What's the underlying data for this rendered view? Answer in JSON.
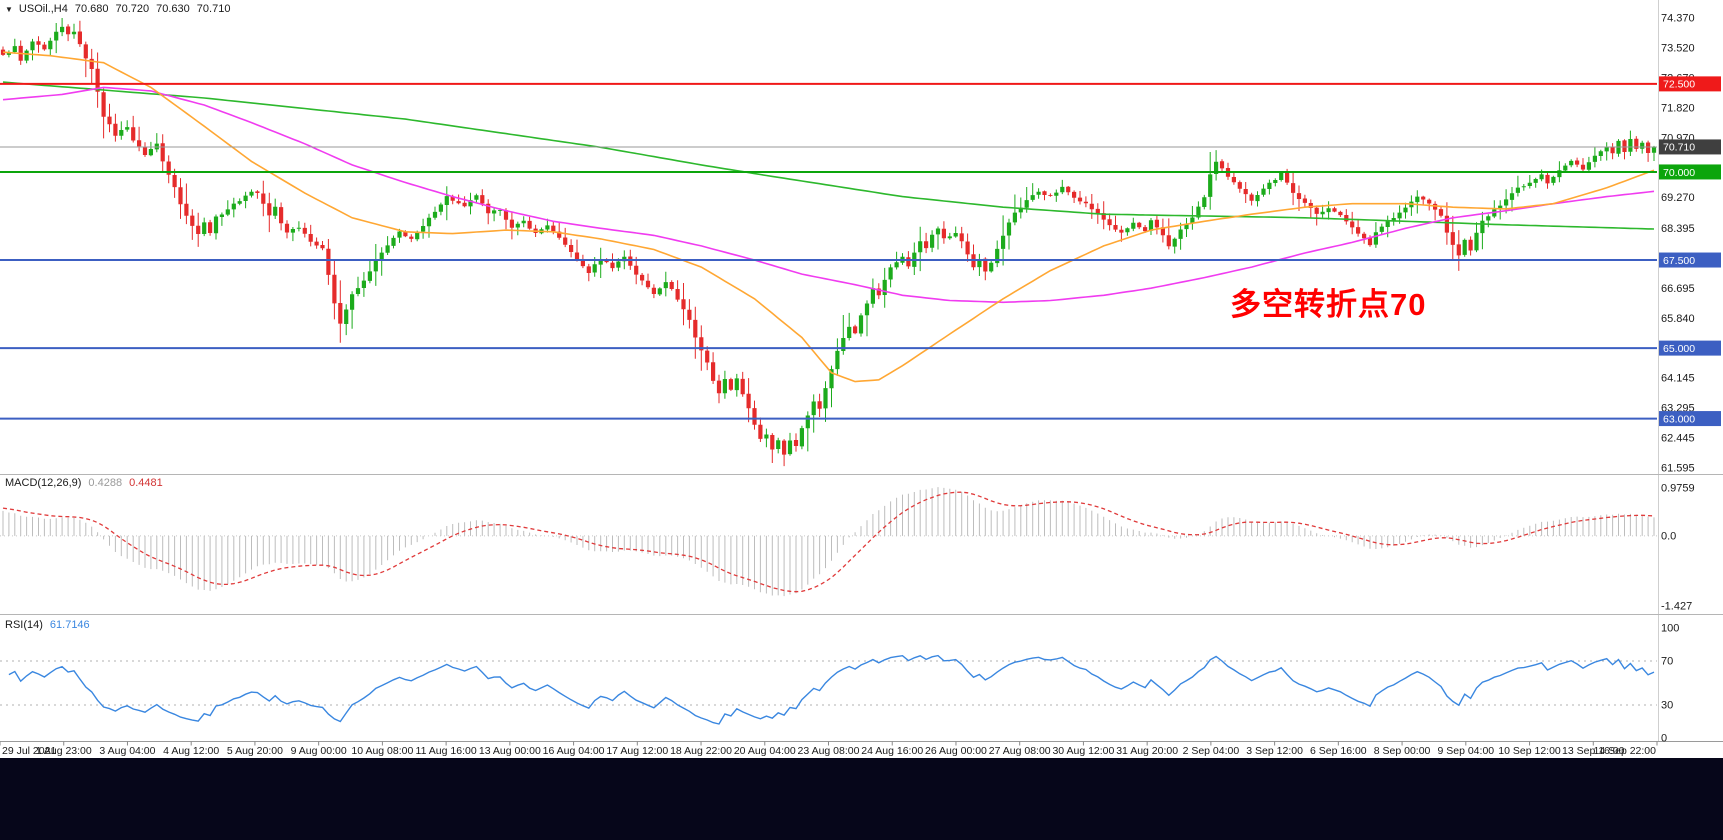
{
  "header": {
    "symbol": "USOil.,H4",
    "open": "70.680",
    "high": "70.720",
    "low": "70.630",
    "close": "70.710"
  },
  "annotation": {
    "text": "多空转折点70",
    "color": "#ff0000"
  },
  "chart_data": {
    "type": "candlestick",
    "symbol": "USOil",
    "timeframe": "H4",
    "bars": 280,
    "colors": {
      "bull": "#1cab1c",
      "bear": "#e52b2b",
      "ma_slow": "#2db82d",
      "ma_mid": "#f03cf0",
      "ma_fast": "#ffa733",
      "background": "#ffffff"
    },
    "x_labels": [
      "29 Jul 2021",
      "1 Aug 23:00",
      "3 Aug 04:00",
      "4 Aug 12:00",
      "5 Aug 20:00",
      "9 Aug 00:00",
      "10 Aug 08:00",
      "11 Aug 16:00",
      "13 Aug 00:00",
      "16 Aug 04:00",
      "17 Aug 12:00",
      "18 Aug 22:00",
      "20 Aug 04:00",
      "23 Aug 08:00",
      "24 Aug 16:00",
      "26 Aug 00:00",
      "27 Aug 08:00",
      "30 Aug 12:00",
      "31 Aug 20:00",
      "2 Sep 04:00",
      "3 Sep 12:00",
      "6 Sep 16:00",
      "8 Sep 00:00",
      "9 Sep 04:00",
      "10 Sep 12:00",
      "13 Sep 16:00",
      "14 Sep 22:00"
    ],
    "price_axis_ticks": [
      "74.370",
      "73.520",
      "72.670",
      "71.820",
      "70.970",
      "69.270",
      "68.395",
      "66.695",
      "65.840",
      "64.145",
      "63.295",
      "62.445",
      "61.595"
    ],
    "hlines": [
      {
        "value": 70.71,
        "label": "70.710",
        "line_color": "#999999",
        "tag_bg": "#3f3f3f",
        "width": 1
      },
      {
        "value": 72.5,
        "label": "72.500",
        "line_color": "#f01818",
        "tag_bg": "#ef1a1a",
        "width": 2
      },
      {
        "value": 70.0,
        "label": "70.000",
        "line_color": "#0ca50c",
        "tag_bg": "#0ca50c",
        "width": 2
      },
      {
        "value": 67.5,
        "label": "67.500",
        "line_color": "#3c5fc2",
        "tag_bg": "#3c5fc2",
        "width": 2
      },
      {
        "value": 65.0,
        "label": "65.000",
        "line_color": "#3c5fc2",
        "tag_bg": "#3c5fc2",
        "width": 2
      },
      {
        "value": 63.0,
        "label": "63.000",
        "line_color": "#3c5fc2",
        "tag_bg": "#3c5fc2",
        "width": 2
      }
    ],
    "close_waypoints": [
      [
        0,
        73.3
      ],
      [
        2,
        73.55
      ],
      [
        3,
        73.15
      ],
      [
        5,
        73.7
      ],
      [
        7,
        73.45
      ],
      [
        9,
        73.95
      ],
      [
        10,
        74.1
      ],
      [
        11,
        73.9
      ],
      [
        12,
        74.0
      ],
      [
        13,
        73.6
      ],
      [
        15,
        72.9
      ],
      [
        16,
        72.3
      ],
      [
        17,
        71.6
      ],
      [
        19,
        71.05
      ],
      [
        21,
        71.3
      ],
      [
        22,
        70.9
      ],
      [
        24,
        70.5
      ],
      [
        26,
        70.8
      ],
      [
        27,
        70.3
      ],
      [
        29,
        69.6
      ],
      [
        30,
        69.1
      ],
      [
        31,
        68.75
      ],
      [
        32,
        68.5
      ],
      [
        33,
        68.25
      ],
      [
        34,
        68.55
      ],
      [
        35,
        68.3
      ],
      [
        36,
        68.7
      ],
      [
        38,
        68.95
      ],
      [
        40,
        69.2
      ],
      [
        42,
        69.45
      ],
      [
        43,
        69.4
      ],
      [
        44,
        69.1
      ],
      [
        45,
        68.75
      ],
      [
        46,
        69.0
      ],
      [
        47,
        68.55
      ],
      [
        48,
        68.3
      ],
      [
        50,
        68.45
      ],
      [
        52,
        68.05
      ],
      [
        54,
        67.8
      ],
      [
        55,
        67.1
      ],
      [
        56,
        66.3
      ],
      [
        57,
        65.7
      ],
      [
        58,
        66.1
      ],
      [
        59,
        66.5
      ],
      [
        61,
        66.9
      ],
      [
        63,
        67.5
      ],
      [
        65,
        67.9
      ],
      [
        67,
        68.3
      ],
      [
        69,
        68.1
      ],
      [
        71,
        68.45
      ],
      [
        73,
        68.9
      ],
      [
        75,
        69.3
      ],
      [
        76,
        69.2
      ],
      [
        78,
        69.0
      ],
      [
        80,
        69.35
      ],
      [
        82,
        68.8
      ],
      [
        84,
        68.95
      ],
      [
        86,
        68.4
      ],
      [
        88,
        68.6
      ],
      [
        90,
        68.25
      ],
      [
        92,
        68.5
      ],
      [
        94,
        68.1
      ],
      [
        96,
        67.75
      ],
      [
        97,
        67.5
      ],
      [
        99,
        67.15
      ],
      [
        101,
        67.55
      ],
      [
        103,
        67.3
      ],
      [
        105,
        67.6
      ],
      [
        107,
        67.1
      ],
      [
        108,
        66.9
      ],
      [
        110,
        66.55
      ],
      [
        112,
        66.9
      ],
      [
        114,
        66.4
      ],
      [
        116,
        65.8
      ],
      [
        117,
        65.3
      ],
      [
        119,
        64.6
      ],
      [
        120,
        64.05
      ],
      [
        121,
        63.75
      ],
      [
        122,
        64.1
      ],
      [
        123,
        63.85
      ],
      [
        124,
        64.15
      ],
      [
        125,
        63.7
      ],
      [
        126,
        63.3
      ],
      [
        127,
        62.8
      ],
      [
        128,
        62.4
      ],
      [
        129,
        62.55
      ],
      [
        130,
        62.1
      ],
      [
        131,
        62.35
      ],
      [
        132,
        61.98
      ],
      [
        133,
        62.4
      ],
      [
        134,
        62.2
      ],
      [
        135,
        62.7
      ],
      [
        136,
        63.1
      ],
      [
        137,
        63.5
      ],
      [
        138,
        63.3
      ],
      [
        139,
        63.9
      ],
      [
        140,
        64.4
      ],
      [
        141,
        64.9
      ],
      [
        142,
        65.3
      ],
      [
        143,
        65.6
      ],
      [
        144,
        65.45
      ],
      [
        145,
        65.9
      ],
      [
        146,
        66.3
      ],
      [
        147,
        66.7
      ],
      [
        148,
        66.5
      ],
      [
        149,
        66.95
      ],
      [
        150,
        67.3
      ],
      [
        151,
        67.45
      ],
      [
        152,
        67.6
      ],
      [
        153,
        67.35
      ],
      [
        154,
        67.7
      ],
      [
        155,
        68.05
      ],
      [
        156,
        67.85
      ],
      [
        157,
        68.2
      ],
      [
        158,
        68.4
      ],
      [
        159,
        68.15
      ],
      [
        161,
        68.25
      ],
      [
        162,
        68.05
      ],
      [
        163,
        67.65
      ],
      [
        164,
        67.3
      ],
      [
        165,
        67.55
      ],
      [
        166,
        67.2
      ],
      [
        167,
        67.45
      ],
      [
        168,
        67.8
      ],
      [
        169,
        68.2
      ],
      [
        170,
        68.55
      ],
      [
        171,
        68.85
      ],
      [
        172,
        69.0
      ],
      [
        173,
        69.2
      ],
      [
        175,
        69.45
      ],
      [
        177,
        69.3
      ],
      [
        179,
        69.55
      ],
      [
        181,
        69.3
      ],
      [
        183,
        69.1
      ],
      [
        185,
        68.8
      ],
      [
        187,
        68.5
      ],
      [
        189,
        68.25
      ],
      [
        191,
        68.55
      ],
      [
        193,
        68.3
      ],
      [
        194,
        68.6
      ],
      [
        196,
        68.2
      ],
      [
        197,
        67.9
      ],
      [
        199,
        68.35
      ],
      [
        201,
        68.7
      ],
      [
        203,
        69.3
      ],
      [
        204,
        69.9
      ],
      [
        205,
        70.3
      ],
      [
        206,
        70.1
      ],
      [
        207,
        69.85
      ],
      [
        209,
        69.5
      ],
      [
        211,
        69.2
      ],
      [
        213,
        69.55
      ],
      [
        215,
        69.8
      ],
      [
        216,
        70.0
      ],
      [
        217,
        69.7
      ],
      [
        218,
        69.4
      ],
      [
        220,
        69.1
      ],
      [
        222,
        68.8
      ],
      [
        224,
        69.0
      ],
      [
        226,
        68.75
      ],
      [
        228,
        68.45
      ],
      [
        230,
        68.1
      ],
      [
        231,
        67.9
      ],
      [
        232,
        68.3
      ],
      [
        234,
        68.6
      ],
      [
        236,
        68.85
      ],
      [
        237,
        69.0
      ],
      [
        239,
        69.3
      ],
      [
        241,
        69.1
      ],
      [
        243,
        68.75
      ],
      [
        244,
        68.3
      ],
      [
        245,
        67.9
      ],
      [
        246,
        67.65
      ],
      [
        247,
        68.05
      ],
      [
        248,
        67.8
      ],
      [
        249,
        68.25
      ],
      [
        250,
        68.6
      ],
      [
        252,
        68.9
      ],
      [
        254,
        69.25
      ],
      [
        256,
        69.55
      ],
      [
        258,
        69.7
      ],
      [
        260,
        69.95
      ],
      [
        261,
        69.7
      ],
      [
        263,
        70.05
      ],
      [
        265,
        70.3
      ],
      [
        267,
        70.1
      ],
      [
        269,
        70.45
      ],
      [
        271,
        70.7
      ],
      [
        272,
        70.5
      ],
      [
        273,
        70.85
      ],
      [
        274,
        70.6
      ],
      [
        275,
        70.9
      ],
      [
        276,
        70.65
      ],
      [
        277,
        70.8
      ],
      [
        278,
        70.55
      ],
      [
        279,
        70.71
      ]
    ],
    "wick_overrides": {
      "10": {
        "high": 74.37
      },
      "57": {
        "low": 65.15
      },
      "99": {
        "low": 66.9
      },
      "130": {
        "low": 61.74
      },
      "132": {
        "low": 61.65
      },
      "205": {
        "high": 70.62
      }
    },
    "moving_averages": [
      {
        "name": "ma-slow-green",
        "color": "#2db82d",
        "waypoints": [
          [
            0,
            72.55
          ],
          [
            34,
            72.1
          ],
          [
            68,
            71.5
          ],
          [
            101,
            70.7
          ],
          [
            118,
            70.2
          ],
          [
            129,
            69.9
          ],
          [
            152,
            69.3
          ],
          [
            169,
            69.0
          ],
          [
            186,
            68.8
          ],
          [
            203,
            68.75
          ],
          [
            220,
            68.7
          ],
          [
            237,
            68.6
          ],
          [
            254,
            68.5
          ],
          [
            279,
            68.38
          ]
        ]
      },
      {
        "name": "ma-mid-magenta",
        "color": "#f03cf0",
        "waypoints": [
          [
            0,
            72.05
          ],
          [
            10,
            72.2
          ],
          [
            17,
            72.4
          ],
          [
            25,
            72.3
          ],
          [
            34,
            71.9
          ],
          [
            42,
            71.4
          ],
          [
            51,
            70.8
          ],
          [
            59,
            70.2
          ],
          [
            68,
            69.7
          ],
          [
            76,
            69.3
          ],
          [
            85,
            68.9
          ],
          [
            93,
            68.6
          ],
          [
            101,
            68.4
          ],
          [
            110,
            68.2
          ],
          [
            118,
            67.9
          ],
          [
            127,
            67.5
          ],
          [
            135,
            67.1
          ],
          [
            144,
            66.8
          ],
          [
            152,
            66.5
          ],
          [
            160,
            66.35
          ],
          [
            169,
            66.3
          ],
          [
            177,
            66.35
          ],
          [
            186,
            66.5
          ],
          [
            194,
            66.7
          ],
          [
            203,
            67.0
          ],
          [
            211,
            67.3
          ],
          [
            220,
            67.7
          ],
          [
            228,
            68.0
          ],
          [
            237,
            68.4
          ],
          [
            245,
            68.7
          ],
          [
            254,
            68.9
          ],
          [
            262,
            69.1
          ],
          [
            271,
            69.3
          ],
          [
            279,
            69.45
          ]
        ]
      },
      {
        "name": "ma-fast-orange",
        "color": "#ffa733",
        "waypoints": [
          [
            0,
            73.4
          ],
          [
            8,
            73.3
          ],
          [
            17,
            73.1
          ],
          [
            25,
            72.4
          ],
          [
            34,
            71.3
          ],
          [
            42,
            70.3
          ],
          [
            51,
            69.4
          ],
          [
            59,
            68.7
          ],
          [
            68,
            68.3
          ],
          [
            76,
            68.25
          ],
          [
            85,
            68.35
          ],
          [
            93,
            68.3
          ],
          [
            101,
            68.1
          ],
          [
            110,
            67.8
          ],
          [
            118,
            67.3
          ],
          [
            127,
            66.4
          ],
          [
            135,
            65.3
          ],
          [
            140,
            64.3
          ],
          [
            144,
            64.05
          ],
          [
            148,
            64.1
          ],
          [
            152,
            64.5
          ],
          [
            160,
            65.4
          ],
          [
            169,
            66.4
          ],
          [
            177,
            67.2
          ],
          [
            186,
            67.9
          ],
          [
            194,
            68.35
          ],
          [
            203,
            68.6
          ],
          [
            211,
            68.8
          ],
          [
            220,
            69.0
          ],
          [
            228,
            69.1
          ],
          [
            237,
            69.1
          ],
          [
            245,
            69.0
          ],
          [
            254,
            68.95
          ],
          [
            262,
            69.1
          ],
          [
            271,
            69.55
          ],
          [
            279,
            70.05
          ]
        ]
      }
    ],
    "macd": {
      "label": "MACD(12,26,9)",
      "value_main": "0.4288",
      "value_signal": "0.4481",
      "params": [
        12,
        26,
        9
      ],
      "hist_color": "#bdbdbd",
      "signal_color": "#e03a3a",
      "axis_ticks": [
        {
          "label": "0.9759",
          "value": 0.9759
        },
        {
          "label": "0.0",
          "value": 0.0
        },
        {
          "label": "-1.427",
          "value": -1.427
        }
      ]
    },
    "rsi": {
      "label": "RSI(14)",
      "value": "61.7146",
      "period": 14,
      "color": "#3a87e0",
      "levels": [
        70,
        30
      ],
      "axis_ticks": [
        {
          "label": "100",
          "value": 100
        },
        {
          "label": "70",
          "value": 70
        },
        {
          "label": "30",
          "value": 30
        },
        {
          "label": "0",
          "value": 0
        }
      ]
    }
  }
}
